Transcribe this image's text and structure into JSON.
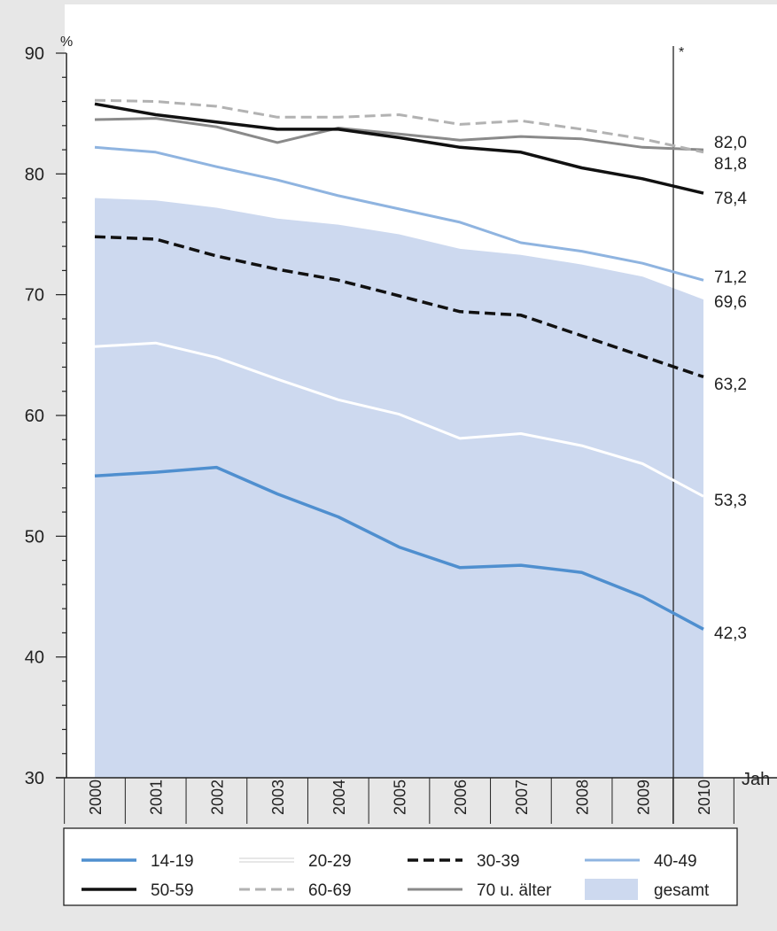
{
  "chart_data": {
    "type": "line",
    "ylabel": "%",
    "xlabel": "Jah",
    "ylim": [
      30,
      90
    ],
    "yticks": [
      30,
      40,
      50,
      60,
      70,
      80,
      90
    ],
    "categories": [
      "2000",
      "2001",
      "2002",
      "2003",
      "2004",
      "2005",
      "2006",
      "2007",
      "2008",
      "2009",
      "2010"
    ],
    "marker_note": "*",
    "legend_position": "bottom",
    "area": {
      "name": "gesamt",
      "color": "#cdd9ef",
      "values": [
        78.0,
        77.8,
        77.2,
        76.3,
        75.8,
        75.0,
        73.8,
        73.3,
        72.5,
        71.5,
        69.6
      ],
      "end_label": "69,6"
    },
    "series": [
      {
        "name": "14-19",
        "color": "#4f8fcf",
        "dash": "solid",
        "width": 3.5,
        "values": [
          55.0,
          55.3,
          55.7,
          53.5,
          51.6,
          49.1,
          47.4,
          47.6,
          47.0,
          45.0,
          42.3
        ],
        "end_label": "42,3"
      },
      {
        "name": "20-29",
        "color": "#ffffff",
        "dash": "solid",
        "width": 3,
        "values": [
          65.7,
          66.0,
          64.8,
          63.0,
          61.3,
          60.1,
          58.1,
          58.5,
          57.5,
          56.0,
          53.3
        ],
        "end_label": "53,3"
      },
      {
        "name": "30-39",
        "color": "#111111",
        "dash": "dashed",
        "width": 3.5,
        "values": [
          74.8,
          74.6,
          73.2,
          72.1,
          71.2,
          69.9,
          68.6,
          68.3,
          66.6,
          64.9,
          63.2
        ],
        "end_label": "63,2"
      },
      {
        "name": "40-49",
        "color": "#8fb4e0",
        "dash": "solid",
        "width": 3,
        "values": [
          82.2,
          81.8,
          80.6,
          79.5,
          78.2,
          77.1,
          76.0,
          74.3,
          73.6,
          72.6,
          71.2
        ],
        "end_label": "71,2"
      },
      {
        "name": "50-59",
        "color": "#111111",
        "dash": "solid",
        "width": 3.5,
        "values": [
          85.8,
          84.9,
          84.3,
          83.7,
          83.7,
          83.0,
          82.2,
          81.8,
          80.5,
          79.6,
          78.4
        ],
        "end_label": "78,4"
      },
      {
        "name": "60-69",
        "color": "#b2b2b2",
        "dash": "dashed",
        "width": 3,
        "values": [
          86.1,
          86.0,
          85.6,
          84.7,
          84.7,
          84.9,
          84.1,
          84.4,
          83.7,
          82.9,
          81.8
        ],
        "end_label": "81,8"
      },
      {
        "name": "70 u. älter",
        "color": "#8a8a8a",
        "dash": "solid",
        "width": 3,
        "values": [
          84.5,
          84.6,
          83.9,
          82.6,
          83.8,
          83.3,
          82.8,
          83.1,
          82.9,
          82.2,
          82.0
        ],
        "end_label": "82,0"
      }
    ]
  }
}
